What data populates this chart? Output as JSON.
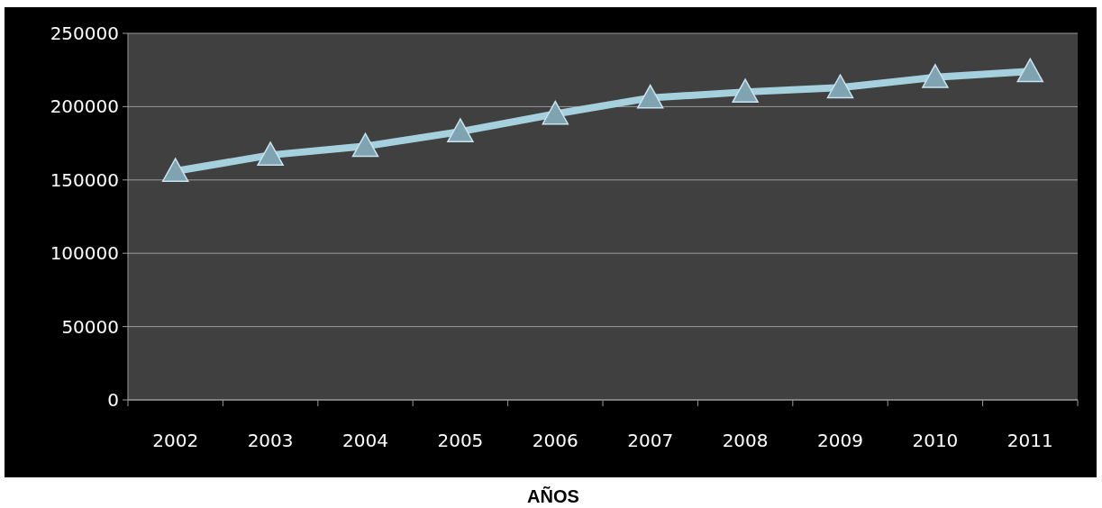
{
  "chart_data": {
    "type": "line",
    "xlabel": "AÑOS",
    "categories": [
      "2002",
      "2003",
      "2004",
      "2005",
      "2006",
      "2007",
      "2008",
      "2009",
      "2010",
      "2011"
    ],
    "series": [
      {
        "color": "#a5d0de",
        "values": [
          156000,
          167000,
          173000,
          183000,
          195000,
          206000,
          210000,
          213000,
          220000,
          224000
        ]
      }
    ],
    "ylim": [
      0,
      250000
    ],
    "yticks": [
      0,
      50000,
      100000,
      150000,
      200000,
      250000
    ],
    "grid": "y",
    "marker": "triangle"
  }
}
